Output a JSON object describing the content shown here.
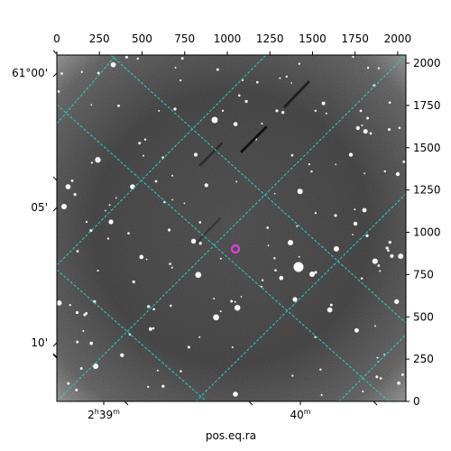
{
  "figure": {
    "xlabel": "pos.eq.ra",
    "frame_color": "#000000",
    "grid_color": "#22d3d0",
    "target_marker_color": "#e83ae8",
    "top_ticks": [
      "0",
      "250",
      "500",
      "750",
      "1000",
      "1250",
      "1500",
      "1750",
      "2000"
    ],
    "right_ticks": [
      "2000",
      "1750",
      "1500",
      "1250",
      "1000",
      "750",
      "500",
      "250",
      "0"
    ],
    "left_ticks": [
      {
        "deg": "61°00'"
      },
      {
        "deg": "05'"
      },
      {
        "deg": "10'"
      }
    ],
    "bottom_ticks": [
      {
        "label": "2",
        "sup1": "h",
        "mid": "39",
        "sup2": "m"
      },
      {
        "label": "40",
        "sup1": "m",
        "mid": "",
        "sup2": ""
      }
    ]
  }
}
